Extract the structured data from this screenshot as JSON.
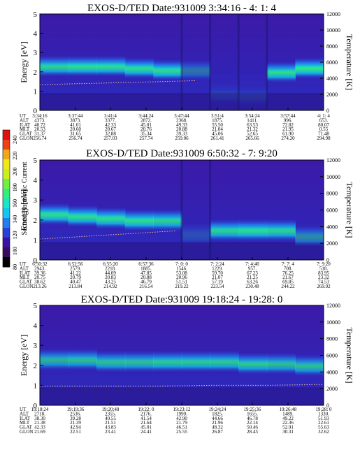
{
  "colorbar": {
    "label": "Second Harmonic Current",
    "ticks": [
      "240",
      "220",
      "200",
      "180",
      "160",
      "140",
      "120",
      "100",
      "80"
    ],
    "colors": [
      "#000000",
      "#3a0a60",
      "#3b12a8",
      "#2a40d8",
      "#1f80f0",
      "#10c8f0",
      "#18e6c8",
      "#30f07a",
      "#70f040",
      "#c8f020",
      "#f0e818",
      "#f0a818",
      "#f04018",
      "#e01010"
    ]
  },
  "chart_data": [
    {
      "type": "heatmap",
      "title": "EXOS-D/TED   Date:931009  3:34:16 - 4: 1: 4",
      "ylabel": "Energy [eV]",
      "y2label": "Temperature [K]",
      "ylim": [
        0,
        5
      ],
      "y2lim": [
        0,
        12000
      ],
      "yticks": [
        "0",
        "1",
        "2",
        "3",
        "4",
        "5"
      ],
      "y2ticks": [
        "0",
        "2000",
        "4000",
        "6000",
        "8000",
        "10000",
        "12000"
      ],
      "band_center_eV": [
        2.3,
        2.3,
        2.3,
        2.2,
        2.1,
        2.1,
        0.9,
        0.8,
        2.0,
        2.2
      ],
      "band_strength": [
        0.85,
        0.9,
        0.9,
        0.9,
        0.9,
        0.4,
        0.1,
        0.1,
        0.9,
        0.95
      ],
      "temperature_K": [
        3200,
        3300,
        3400,
        3500,
        3600,
        3700
      ],
      "orbit_rows": [
        "UT",
        "ALT",
        "ILAT",
        "MLT",
        "GLAT",
        "GLON"
      ],
      "orbit_table": [
        [
          "3:34:16",
          "4373.",
          "40.72",
          "20.53",
          "31.37",
          "256.74"
        ],
        [
          "3:37:44",
          "3873.",
          "41.01",
          "20.60",
          "31.65",
          "256.74"
        ],
        [
          "3:41:4",
          "3377.",
          "42.33",
          "20.67",
          "32.88",
          "257.03"
        ],
        [
          "3:44:24",
          "2872.",
          "45.01",
          "20.76",
          "35.34",
          "257.74"
        ],
        [
          "3:47:44",
          "2368.",
          "49.33",
          "20.88",
          "39.33",
          "259.06"
        ],
        [
          "3:51:4",
          "1875.",
          "55.50",
          "21.04",
          "45.06",
          "261.41"
        ],
        [
          "3:54:24",
          "1411.",
          "63.53",
          "21.32",
          "52.65",
          "265.66"
        ],
        [
          "3:57:44",
          "996.",
          "72.82",
          "21.95",
          "61.90",
          "274.20"
        ],
        [
          "4: 1: 4",
          "653.",
          "80.07",
          "0.55",
          "71.48",
          "294.98"
        ]
      ]
    },
    {
      "type": "heatmap",
      "title": "EXOS-D/TED   Date:931009  6:50:32 - 7: 9:20",
      "ylabel": "Energy [eV]",
      "y2label": "Temperature [K]",
      "ylim": [
        0,
        5
      ],
      "y2lim": [
        0,
        12000
      ],
      "yticks": [
        "0",
        "1",
        "2",
        "3",
        "4",
        "5"
      ],
      "y2ticks": [
        "0",
        "2000",
        "4000",
        "6000",
        "8000",
        "10000",
        "12000"
      ],
      "band_center_eV": [
        2.3,
        2.2,
        2.1,
        2.0,
        2.0,
        1.3,
        1.5,
        1.5,
        1.5,
        1.2
      ],
      "band_strength": [
        0.9,
        0.9,
        0.9,
        0.9,
        0.85,
        0.2,
        0.85,
        0.9,
        0.85,
        0.5
      ],
      "temperature_K": [
        2500,
        2700,
        2900,
        3100,
        3300,
        3500
      ],
      "orbit_rows": [
        "UT",
        "ALT",
        "ILAT",
        "MLT",
        "GLAT",
        "GLON"
      ],
      "orbit_table": [
        [
          "6:50:32",
          "2943.",
          "39.36",
          "20.75",
          "38.62",
          "213.26"
        ],
        [
          "6:52:56",
          "2579.",
          "41.22",
          "20.79",
          "40.47",
          "213.84"
        ],
        [
          "6:55:20",
          "2218.",
          "44.09",
          "20.83",
          "43.25",
          "214.92"
        ],
        [
          "6:57:36",
          "1885.",
          "47.85",
          "20.88",
          "46.79",
          "216.54"
        ],
        [
          "7: 0: 0",
          "1546.",
          "53.08",
          "20.96",
          "51.51",
          "219.22"
        ],
        [
          "7: 2:24",
          "1229.",
          "59.70",
          "21.07",
          "57.19",
          "223.54"
        ],
        [
          "7: 4:40",
          "957.",
          "67.23",
          "21.25",
          "63.26",
          "230.48"
        ],
        [
          "7: 7: 4",
          "708.",
          "76.25",
          "21.67",
          "69.85",
          "244.22"
        ],
        [
          "7: 9:20",
          "518.",
          "83.95",
          "23.32",
          "74.53",
          "269.92"
        ]
      ]
    },
    {
      "type": "heatmap",
      "title": "EXOS-D/TED   Date:931009  19:18:24 - 19:28: 0",
      "ylabel": "Energy [eV]",
      "y2label": "Temperature [K]",
      "ylim": [
        0,
        5
      ],
      "y2lim": [
        0,
        12000
      ],
      "yticks": [
        "0",
        "1",
        "2",
        "3",
        "4",
        "5"
      ],
      "y2ticks": [
        "0",
        "2000",
        "4000",
        "6000",
        "8000",
        "10000",
        "12000"
      ],
      "band_center_eV": [
        2.3,
        2.3,
        2.2,
        2.2,
        2.2,
        2.2,
        2.2,
        2.1,
        2.1,
        2.0
      ],
      "band_strength": [
        0.7,
        0.75,
        0.75,
        0.75,
        0.8,
        0.8,
        0.8,
        0.8,
        0.75,
        0.75
      ],
      "temperature_K": [
        2300,
        2300,
        2300,
        2400,
        2400,
        2500
      ],
      "orbit_rows": [
        "UT",
        "ALT",
        "ILAT",
        "MLT",
        "GLAT",
        "GLON"
      ],
      "orbit_table": [
        [
          "19:18:24",
          "2718.",
          "38.30",
          "21.38",
          "42.33",
          "21.69"
        ],
        [
          "19:19:36",
          "2536.",
          "39.28",
          "21.39",
          "42.94",
          "22.51"
        ],
        [
          "19:20:48",
          "2355.",
          "40.55",
          "21.51",
          "43.83",
          "23.41"
        ],
        [
          "19:22: 0",
          "2176.",
          "41.54",
          "21.64",
          "45.01",
          "24.41"
        ],
        [
          "19:23:12",
          "1999.",
          "42.90",
          "21.79",
          "46.51",
          "25.55"
        ],
        [
          "19:24:24",
          "1825.",
          "44.66",
          "21.96",
          "48.32",
          "26.87"
        ],
        [
          "19:25:36",
          "1655.",
          "46.78",
          "22.14",
          "50.46",
          "28.43"
        ],
        [
          "19:26:48",
          "1489.",
          "49.22",
          "22.36",
          "52.91",
          "30.31"
        ],
        [
          "19:28: 0",
          "1330.",
          "51.93",
          "22.61",
          "55.63",
          "32.62"
        ]
      ]
    }
  ]
}
